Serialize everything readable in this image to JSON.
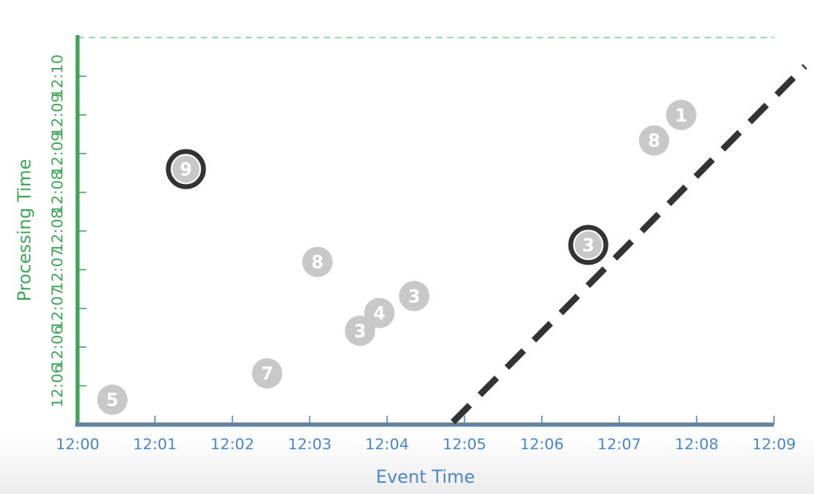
{
  "chart_data": {
    "type": "scatter",
    "xlabel": "Event Time",
    "ylabel": "Processing Time",
    "x_ticks": [
      "12:00",
      "12:01",
      "12:02",
      "12:03",
      "12:04",
      "12:05",
      "12:06",
      "12:07",
      "12:08",
      "12:09"
    ],
    "y_ticks": [
      "12:06",
      "12:06",
      "12:07",
      "12:07",
      "12:08",
      "12:08",
      "12:09",
      "12:09",
      "12:10"
    ],
    "xlim": [
      0,
      9
    ],
    "ylim": [
      0,
      5
    ],
    "points": [
      {
        "label": "5",
        "x": 0.45,
        "y": 0.32,
        "highlighted": false
      },
      {
        "label": "9",
        "x": 1.4,
        "y": 3.3,
        "highlighted": true
      },
      {
        "label": "7",
        "x": 2.45,
        "y": 0.66,
        "highlighted": false
      },
      {
        "label": "8",
        "x": 3.1,
        "y": 2.1,
        "highlighted": false
      },
      {
        "label": "3",
        "x": 3.65,
        "y": 1.21,
        "highlighted": false
      },
      {
        "label": "4",
        "x": 3.9,
        "y": 1.44,
        "highlighted": false
      },
      {
        "label": "3",
        "x": 4.35,
        "y": 1.66,
        "highlighted": false
      },
      {
        "label": "3",
        "x": 6.6,
        "y": 2.32,
        "highlighted": true
      },
      {
        "label": "8",
        "x": 7.45,
        "y": 3.67,
        "highlighted": false
      },
      {
        "label": "1",
        "x": 7.8,
        "y": 4.0,
        "highlighted": false
      }
    ],
    "watermark_line": {
      "x": [
        4.85,
        9.4
      ],
      "y": [
        0.03,
        4.63
      ]
    },
    "top_reference_line": {
      "y": 5,
      "style": "dashed"
    },
    "colors": {
      "y_axis": "#3fa457",
      "x_axis_line": "#6e7f8e",
      "x_labels": "#4a86c8",
      "point_fill": "#c8c8c8",
      "highlight_ring": "#333333",
      "watermark": "#333333",
      "top_line": "#7fce95"
    }
  }
}
